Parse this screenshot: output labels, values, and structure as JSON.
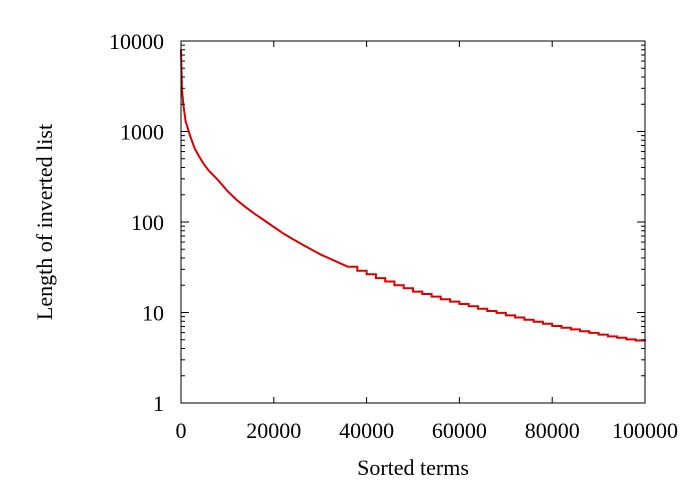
{
  "chart_data": {
    "type": "line",
    "title": "",
    "xlabel": "Sorted terms",
    "ylabel": "Length of inverted list",
    "xlim": [
      0,
      100000
    ],
    "ylim": [
      1,
      10000
    ],
    "yscale": "log",
    "grid": false,
    "x_ticks": [
      0,
      20000,
      40000,
      60000,
      80000,
      100000
    ],
    "x_tick_labels": [
      "0",
      "20000",
      "40000",
      "60000",
      "80000",
      "100000"
    ],
    "y_ticks": [
      1,
      10,
      100,
      1000,
      10000
    ],
    "y_tick_labels": [
      "1",
      "10",
      "100",
      "1000",
      "10000"
    ],
    "series": [
      {
        "color": "#d90000",
        "x": [
          0,
          200,
          500,
          1000,
          2000,
          3000,
          4000,
          5000,
          6000,
          8000,
          10000,
          12000,
          14000,
          16000,
          18000,
          20000,
          22000,
          24000,
          26000,
          28000,
          30000,
          32000,
          34000,
          36000,
          38000,
          40000,
          42000,
          44000,
          46000,
          48000,
          50000,
          52000,
          54000,
          56000,
          58000,
          60000,
          62000,
          64000,
          66000,
          68000,
          70000,
          72000,
          74000,
          76000,
          78000,
          80000,
          82000,
          84000,
          86000,
          88000,
          90000,
          92000,
          94000,
          96000,
          98000,
          100000
        ],
        "y": [
          8000,
          3000,
          2000,
          1300,
          880,
          640,
          520,
          430,
          370,
          290,
          220,
          175,
          145,
          122,
          104,
          88,
          75,
          65,
          57,
          50,
          44,
          39.5,
          35.5,
          32,
          29,
          26.5,
          24,
          22,
          20,
          18.5,
          17,
          16,
          15,
          14,
          13.2,
          12.4,
          11.7,
          11,
          10.4,
          9.9,
          9.3,
          8.8,
          8.3,
          7.9,
          7.5,
          7.1,
          6.8,
          6.5,
          6.2,
          5.95,
          5.7,
          5.45,
          5.25,
          5.05,
          4.9,
          4.8
        ]
      }
    ]
  }
}
